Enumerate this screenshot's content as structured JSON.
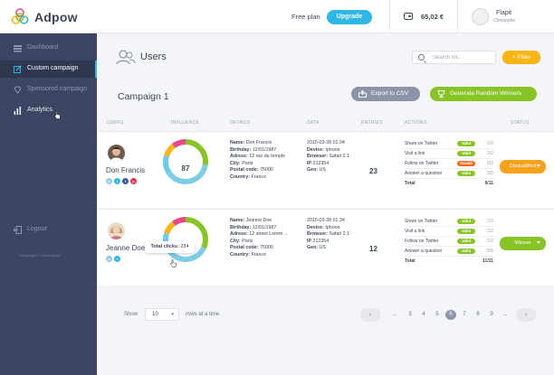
{
  "app": {
    "name": "Adpow"
  },
  "topbar": {
    "plan_text": "Free plan",
    "upgrade_label": "Upgrade",
    "balance": "65,02 €",
    "user_name": "Flapit",
    "user_sub": "Christophe"
  },
  "sidebar": {
    "items": [
      {
        "label": "Dashboard",
        "icon": "dashboard-icon"
      },
      {
        "label": "Custom campaign",
        "icon": "edit-icon",
        "active": true
      },
      {
        "label": "Sponsored campaign",
        "icon": "diamond-icon"
      },
      {
        "label": "Analytics",
        "icon": "bar-chart-icon"
      },
      {
        "label": "Logout",
        "icon": "logout-icon"
      }
    ],
    "copyright": "Copyright © 2015 Adpow"
  },
  "page": {
    "title": "Users",
    "search_placeholder": "Search for...",
    "filter_label": "+ Filter",
    "campaign_title": "Campaign 1",
    "export_label": "Export to CSV",
    "generate_label": "Generate Random Winners"
  },
  "table": {
    "headers": [
      "USERS",
      "INFLUENCE",
      "DETAILS",
      "DATA",
      "ENTRIES",
      "ACTIONS",
      "STATUS"
    ],
    "rows": [
      {
        "name": "Don Francis",
        "influence": "87",
        "details": {
          "name": "Don Francis",
          "birthday": "12/01/1987",
          "adress": "12 rue du temple",
          "city": "Paris",
          "postal": "75000",
          "country": "France"
        },
        "data": {
          "date": "2015-03-28 01:34",
          "device": "Iphone",
          "browser": "Safari 2.1",
          "ip": "212354",
          "geo": "US"
        },
        "entries": "23",
        "actions": [
          {
            "name": "Share on Twitter",
            "badge": "Valid",
            "count": "2/2"
          },
          {
            "name": "Visit a link",
            "badge": "Valid",
            "count": "2/2"
          },
          {
            "name": "Follow on Twitter",
            "badge": "Invalid",
            "count": "0/2"
          },
          {
            "name": "Answer a question",
            "badge": "Valid",
            "count": "5/5"
          }
        ],
        "total_label": "Total",
        "total": "9/11",
        "status": "Disqualified",
        "status_color": "#f7a21b"
      },
      {
        "name": "Jeanne Doe",
        "tooltip_label": "Total clicks:",
        "tooltip_value": "234",
        "details": {
          "name": "Jeanne Doe",
          "birthday": "12/01/1987",
          "adress": "12 street Lorem ...",
          "city": "Paris",
          "postal": "75000",
          "country": "France"
        },
        "data": {
          "date": "2015-03-28 01:34",
          "device": "Iphone",
          "browser": "Safari 2.1",
          "ip": "212354",
          "geo": "US"
        },
        "entries": "12",
        "actions": [
          {
            "name": "Share on Twitter",
            "badge": "Valid",
            "count": "2/2"
          },
          {
            "name": "Visit a link",
            "badge": "Valid",
            "count": "2/2"
          },
          {
            "name": "Follow on Twitter",
            "badge": "Valid",
            "count": "2/2"
          },
          {
            "name": "Answer a question",
            "badge": "Valid",
            "count": "5/5"
          }
        ],
        "total_label": "Total",
        "total": "11/11",
        "status": "Winner",
        "status_color": "#89c427"
      }
    ],
    "detail_labels": {
      "name": "Name:",
      "birthday": "Birthday:",
      "adress": "Adress:",
      "city": "City:",
      "postal": "Postal code:",
      "country": "Country:",
      "device": "Device:",
      "browser": "Browser:",
      "ip": "IP",
      "geo": "Geo:"
    }
  },
  "pagination": {
    "show_label": "Show",
    "rows_value": "10",
    "rows_label": "rows at a time",
    "prev": "‹",
    "next": "›",
    "pages": [
      "...",
      "3",
      "4",
      "5",
      "6",
      "7",
      "8",
      "9",
      "..."
    ],
    "active_page": "6"
  },
  "colors": {
    "accent": "#2fb8e6",
    "valid": "#89c427",
    "invalid": "#f7a21b",
    "sidebar": "#3c4663"
  }
}
